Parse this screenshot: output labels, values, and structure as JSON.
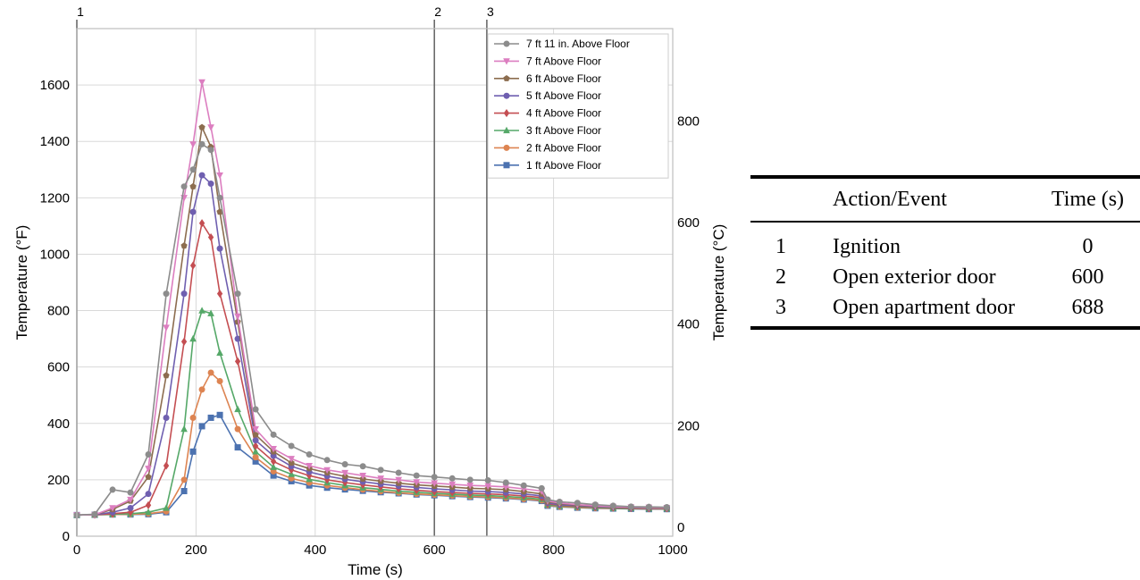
{
  "chart_data": {
    "type": "line",
    "xlabel": "Time (s)",
    "ylabel_left": "Temperature (°F)",
    "ylabel_right": "Temperature (°C)",
    "xlim": [
      0,
      1000
    ],
    "ylim_left": [
      0,
      1800
    ],
    "ylim_right": [
      -17.8,
      982.2
    ],
    "x_ticks": [
      0,
      200,
      400,
      600,
      800,
      1000
    ],
    "y_ticks_left": [
      0,
      200,
      400,
      600,
      800,
      1000,
      1200,
      1400,
      1600
    ],
    "y_ticks_right": [
      0,
      200,
      400,
      600,
      800
    ],
    "grid": true,
    "legend_position": "top-right",
    "event_lines": [
      {
        "label": "1",
        "x": 0
      },
      {
        "label": "2",
        "x": 600
      },
      {
        "label": "3",
        "x": 688
      }
    ],
    "x": [
      0,
      30,
      60,
      90,
      120,
      150,
      180,
      195,
      210,
      225,
      240,
      270,
      300,
      330,
      360,
      390,
      420,
      450,
      480,
      510,
      540,
      570,
      600,
      630,
      660,
      690,
      720,
      750,
      780,
      790,
      810,
      840,
      870,
      900,
      930,
      960,
      990
    ],
    "series": [
      {
        "name": "7 ft 11 in. Above Floor",
        "color": "#8c8c8c",
        "marker": "circle",
        "values": [
          75,
          78,
          165,
          155,
          290,
          860,
          1240,
          1300,
          1390,
          1370,
          1200,
          860,
          450,
          360,
          320,
          290,
          270,
          255,
          248,
          235,
          225,
          215,
          210,
          205,
          200,
          198,
          190,
          180,
          170,
          130,
          122,
          118,
          112,
          108,
          105,
          104,
          103
        ]
      },
      {
        "name": "7 ft Above Floor",
        "color": "#dc7ec0",
        "marker": "triangle-down",
        "values": [
          75,
          76,
          100,
          130,
          240,
          740,
          1200,
          1390,
          1610,
          1450,
          1280,
          780,
          380,
          310,
          275,
          250,
          235,
          225,
          215,
          205,
          200,
          192,
          188,
          184,
          180,
          178,
          175,
          168,
          160,
          125,
          118,
          112,
          108,
          105,
          103,
          102,
          101
        ]
      },
      {
        "name": "6 ft Above Floor",
        "color": "#8c6d4f",
        "marker": "pentagon",
        "values": [
          75,
          76,
          95,
          125,
          210,
          570,
          1030,
          1240,
          1450,
          1380,
          1150,
          760,
          360,
          300,
          260,
          240,
          225,
          212,
          203,
          195,
          188,
          182,
          178,
          174,
          170,
          168,
          165,
          158,
          150,
          122,
          116,
          110,
          107,
          104,
          102,
          101,
          100
        ]
      },
      {
        "name": "5 ft Above Floor",
        "color": "#6f5fb0",
        "marker": "circle",
        "values": [
          75,
          76,
          85,
          100,
          150,
          420,
          860,
          1150,
          1280,
          1250,
          1020,
          700,
          340,
          285,
          248,
          228,
          213,
          202,
          193,
          185,
          178,
          173,
          168,
          164,
          160,
          158,
          155,
          150,
          143,
          118,
          112,
          108,
          105,
          103,
          101,
          100,
          100
        ]
      },
      {
        "name": "4 ft Above Floor",
        "color": "#c44e52",
        "marker": "diamond",
        "values": [
          75,
          76,
          80,
          85,
          110,
          250,
          690,
          960,
          1110,
          1060,
          860,
          620,
          320,
          265,
          235,
          215,
          200,
          190,
          182,
          175,
          168,
          163,
          158,
          155,
          152,
          150,
          147,
          143,
          137,
          115,
          110,
          106,
          104,
          102,
          100,
          99,
          99
        ]
      },
      {
        "name": "3 ft Above Floor",
        "color": "#55a868",
        "marker": "triangle-up",
        "values": [
          75,
          76,
          78,
          80,
          85,
          100,
          380,
          700,
          800,
          790,
          650,
          450,
          300,
          245,
          220,
          202,
          190,
          180,
          172,
          166,
          160,
          156,
          152,
          149,
          146,
          144,
          141,
          137,
          131,
          112,
          107,
          104,
          102,
          100,
          99,
          98,
          98
        ]
      },
      {
        "name": "2 ft Above Floor",
        "color": "#dd8452",
        "marker": "circle",
        "values": [
          75,
          76,
          77,
          78,
          80,
          88,
          200,
          420,
          520,
          580,
          550,
          380,
          280,
          230,
          205,
          190,
          180,
          172,
          165,
          159,
          154,
          150,
          147,
          144,
          141,
          139,
          136,
          132,
          127,
          110,
          105,
          102,
          100,
          99,
          98,
          97,
          97
        ]
      },
      {
        "name": "1 ft Above Floor",
        "color": "#4c72b0",
        "marker": "square",
        "values": [
          75,
          76,
          77,
          77,
          78,
          85,
          160,
          300,
          390,
          420,
          430,
          315,
          265,
          215,
          195,
          180,
          172,
          166,
          161,
          156,
          152,
          148,
          145,
          142,
          139,
          137,
          134,
          130,
          125,
          108,
          104,
          101,
          99,
          98,
          97,
          96,
          96
        ]
      }
    ]
  },
  "table": {
    "headers": [
      "",
      "Action/Event",
      "Time (s)"
    ],
    "rows": [
      {
        "num": "1",
        "event": "Ignition",
        "time": "0"
      },
      {
        "num": "2",
        "event": "Open exterior door",
        "time": "600"
      },
      {
        "num": "3",
        "event": "Open apartment door",
        "time": "688"
      }
    ]
  }
}
